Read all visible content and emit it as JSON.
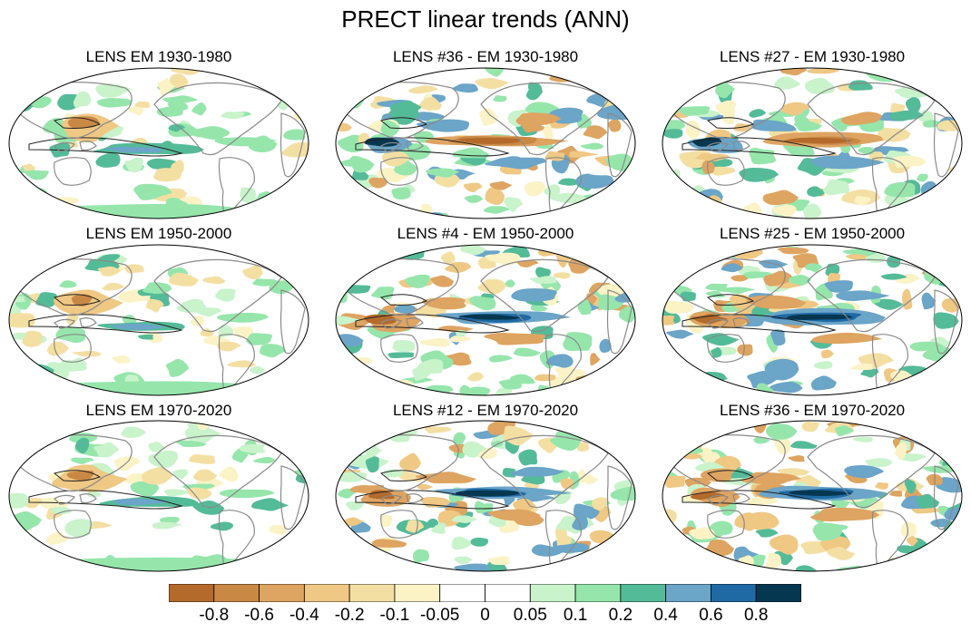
{
  "title": "PRECT linear trends (ANN)",
  "panels": [
    {
      "title": "LENS EM 1930-1980",
      "style": "em"
    },
    {
      "title": "LENS #36 - EM 1930-1980",
      "style": "member"
    },
    {
      "title": "LENS #27 - EM 1930-1980",
      "style": "member"
    },
    {
      "title": "LENS EM 1950-2000",
      "style": "em"
    },
    {
      "title": "LENS #4 - EM 1950-2000",
      "style": "member"
    },
    {
      "title": "LENS #25 - EM 1950-2000",
      "style": "member"
    },
    {
      "title": "LENS EM 1970-2020",
      "style": "em"
    },
    {
      "title": "LENS #12 - EM 1970-2020",
      "style": "member"
    },
    {
      "title": "LENS #36 - EM 1970-2020",
      "style": "member"
    }
  ],
  "colorbar": {
    "labels": [
      "-0.8",
      "-0.6",
      "-0.4",
      "-0.2",
      "-0.1",
      "-0.05",
      "0",
      "0.05",
      "0.1",
      "0.2",
      "0.4",
      "0.6",
      "0.8"
    ],
    "colors": [
      "#b36a2b",
      "#c98945",
      "#dea461",
      "#efc884",
      "#f4dfa3",
      "#fbf3c6",
      "#ffffff",
      "#ffffff",
      "#c9f3cb",
      "#96e6ac",
      "#54bb98",
      "#6ba5c8",
      "#1f6aa5",
      "#063750"
    ]
  }
}
